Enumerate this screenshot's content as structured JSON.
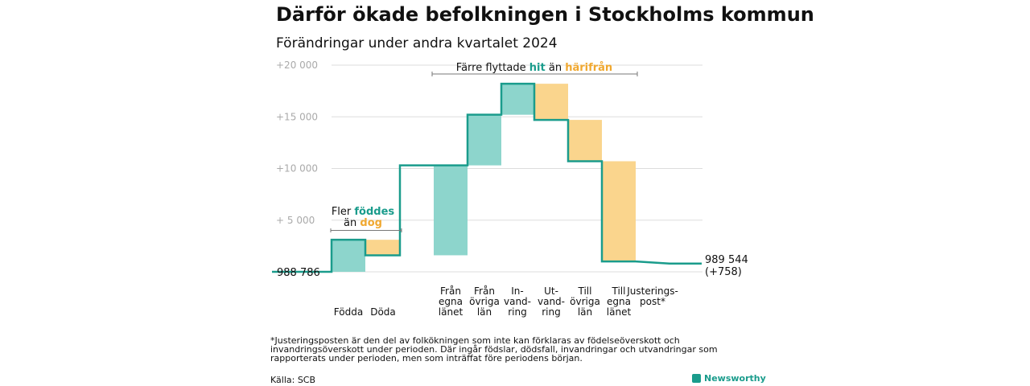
{
  "header": {
    "title": "Därför ökade befolkningen i Stockholms kommun",
    "subtitle": "Förändringar under andra kvartalet 2024"
  },
  "chart_data": {
    "type": "waterfall",
    "start_value": 988786,
    "start_label": "988  786",
    "end_value": 989544,
    "end_label_line1": "989 544",
    "end_label_line2": "(+758)",
    "y_ticks": [
      {
        "value": 0,
        "label": ""
      },
      {
        "value": 5000,
        "label": "+  5  000"
      },
      {
        "value": 10000,
        "label": "+10  000"
      },
      {
        "value": 15000,
        "label": "+15  000"
      },
      {
        "value": 20000,
        "label": "+20  000"
      }
    ],
    "ylim": [
      0,
      20000
    ],
    "grid": true,
    "steps": [
      {
        "label_lines": [
          "Födda"
        ],
        "change": 3100,
        "kind": "increase"
      },
      {
        "label_lines": [
          "Döda"
        ],
        "change": -1500,
        "kind": "decrease"
      },
      {
        "label_lines": [
          "Från",
          "egna",
          "länet"
        ],
        "change": 8700,
        "kind": "increase"
      },
      {
        "label_lines": [
          "Från",
          "övriga",
          "län"
        ],
        "change": 4900,
        "kind": "increase"
      },
      {
        "label_lines": [
          "In-",
          "vand-",
          "ring"
        ],
        "change": 3000,
        "kind": "increase"
      },
      {
        "label_lines": [
          "Ut-",
          "vand-",
          "ring"
        ],
        "change": -3500,
        "kind": "decrease"
      },
      {
        "label_lines": [
          "Till",
          "övriga",
          "län"
        ],
        "change": -4000,
        "kind": "decrease"
      },
      {
        "label_lines": [
          "Till",
          "egna",
          "länet"
        ],
        "change": -9700,
        "kind": "decrease"
      },
      {
        "label_lines": [
          "Justerings-",
          "post*"
        ],
        "change": -200,
        "kind": "adjustment"
      }
    ],
    "annotations": {
      "birth": {
        "line1": "Fler ",
        "line1_hl": "föddes",
        "line2": "än ",
        "line2_hl": "dog"
      },
      "migration": {
        "text1": "Färre flyttade ",
        "hl1": "hit",
        "text2": "  än  ",
        "hl2": "härifrån"
      }
    },
    "colors": {
      "increase": "#8dd5cc",
      "decrease": "#fad58d",
      "line": "#1a9c8c",
      "highlight_increase": "#1a9c8c",
      "highlight_decrease": "#f0a830",
      "grid": "#dddddd",
      "bracket": "#777777"
    }
  },
  "footer": {
    "footnote": "*Justeringsposten är den del av folkökningen som inte kan förklaras av födelseöverskott och invandringsöverskott under perioden. Där ingår födslar, dödsfall, invandringar och utvandringar som rapporterats under perioden, men som inträffat före periodens början.",
    "source": "Källa: SCB",
    "brand": "Newsworthy"
  }
}
